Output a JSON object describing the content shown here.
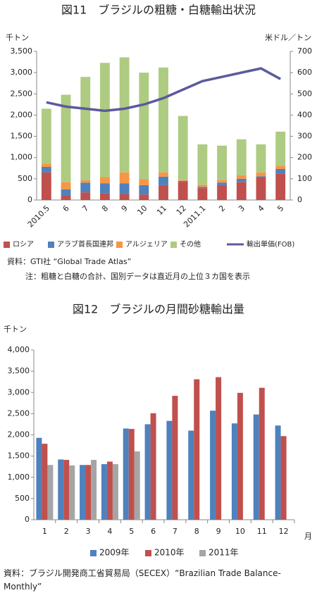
{
  "chart_data": [
    {
      "type": "bar",
      "stacked": true,
      "title": "図11　ブラジルの粗糖・白糖輸出状況",
      "y_label": "千トン",
      "y2_label": "米ドル／トン",
      "categories": [
        "2010.5",
        "6",
        "7",
        "8",
        "9",
        "10",
        "11",
        "12",
        "2011.1",
        "2",
        "3",
        "4",
        "5"
      ],
      "series": [
        {
          "name": "ロシア",
          "color": "#c0504d",
          "values": [
            650,
            100,
            180,
            160,
            140,
            130,
            350,
            430,
            280,
            350,
            420,
            540,
            620
          ]
        },
        {
          "name": "アラブ首長国連邦",
          "color": "#4f81bd",
          "values": [
            130,
            150,
            230,
            230,
            250,
            220,
            200,
            20,
            30,
            60,
            80,
            20,
            110
          ]
        },
        {
          "name": "アルジェリア",
          "color": "#f79646",
          "values": [
            80,
            170,
            60,
            150,
            260,
            140,
            100,
            20,
            50,
            60,
            80,
            90,
            80
          ]
        },
        {
          "name": "その他",
          "color": "#aecb82",
          "values": [
            1290,
            2060,
            2430,
            2690,
            2710,
            2510,
            2470,
            1510,
            950,
            810,
            850,
            660,
            800
          ]
        },
        {
          "name": "輸出単価(FOB)",
          "color": "#5b5a9c",
          "type": "line",
          "axis": "y2",
          "values": [
            460,
            440,
            430,
            420,
            430,
            450,
            480,
            520,
            560,
            580,
            600,
            620,
            570
          ]
        }
      ],
      "ylim": [
        0,
        3500
      ],
      "yticks": [
        0,
        500,
        {
          "value": 1000,
          "label": "1,000"
        },
        {
          "value": 1500,
          "label": "1,500"
        },
        {
          "value": 2000,
          "label": "2,000"
        },
        {
          "value": 2500,
          "label": "2,500"
        },
        {
          "value": 3000,
          "label": "3,000"
        },
        {
          "value": 3500,
          "label": "3,500"
        }
      ],
      "y2lim": [
        0,
        700
      ],
      "y2ticks": [
        0,
        100,
        200,
        300,
        400,
        500,
        600,
        700
      ],
      "source": "資料：GTI社 “Global Trade Atlas”",
      "note": "注：粗糖と白糖の合計、国別データは直近月の上位３カ国を表示"
    },
    {
      "type": "bar",
      "stacked": false,
      "title": "図12　ブラジルの月間砂糖輸出量",
      "y_label": "千トン",
      "x_label": "月",
      "categories": [
        "1",
        "2",
        "3",
        "4",
        "5",
        "6",
        "7",
        "8",
        "9",
        "10",
        "11",
        "12"
      ],
      "series": [
        {
          "name": "2009年",
          "color": "#4f81bd",
          "values": [
            1930,
            1420,
            1290,
            1310,
            2150,
            2250,
            2330,
            2100,
            2570,
            2270,
            2480,
            2220
          ]
        },
        {
          "name": "2010年",
          "color": "#c0504d",
          "values": [
            1790,
            1410,
            1290,
            1370,
            2140,
            2510,
            2920,
            3310,
            3360,
            2990,
            3110,
            1970
          ]
        },
        {
          "name": "2011年",
          "color": "#a5a5a5",
          "values": [
            1290,
            1280,
            1410,
            1310,
            1610,
            null,
            null,
            null,
            null,
            null,
            null,
            null
          ]
        }
      ],
      "ylim": [
        0,
        4000
      ],
      "yticks": [
        0,
        500,
        {
          "value": 1000,
          "label": "1,000"
        },
        {
          "value": 1500,
          "label": "1,500"
        },
        {
          "value": 2000,
          "label": "2,000"
        },
        {
          "value": 2500,
          "label": "2,500"
        },
        {
          "value": 3000,
          "label": "3,000"
        },
        {
          "value": 3500,
          "label": "3,500"
        },
        {
          "value": 4000,
          "label": "4,000"
        }
      ],
      "source": "資料：ブラジル開発商工省貿易局（SECEX）“Brazilian Trade Balance-Monthly”"
    }
  ]
}
